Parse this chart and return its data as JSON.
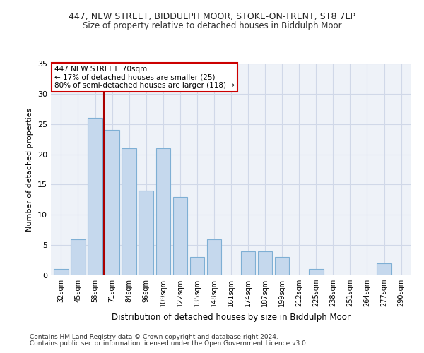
{
  "title1": "447, NEW STREET, BIDDULPH MOOR, STOKE-ON-TRENT, ST8 7LP",
  "title2": "Size of property relative to detached houses in Biddulph Moor",
  "xlabel": "Distribution of detached houses by size in Biddulph Moor",
  "ylabel": "Number of detached properties",
  "categories": [
    "32sqm",
    "45sqm",
    "58sqm",
    "71sqm",
    "84sqm",
    "96sqm",
    "109sqm",
    "122sqm",
    "135sqm",
    "148sqm",
    "161sqm",
    "174sqm",
    "187sqm",
    "199sqm",
    "212sqm",
    "225sqm",
    "238sqm",
    "251sqm",
    "264sqm",
    "277sqm",
    "290sqm"
  ],
  "values": [
    1,
    6,
    26,
    24,
    21,
    14,
    21,
    13,
    3,
    6,
    0,
    4,
    4,
    3,
    0,
    1,
    0,
    0,
    0,
    2,
    0
  ],
  "bar_color": "#c5d8ed",
  "bar_edge_color": "#7eafd4",
  "vline_color": "#aa0000",
  "annotation_text": "447 NEW STREET: 70sqm\n← 17% of detached houses are smaller (25)\n80% of semi-detached houses are larger (118) →",
  "annotation_box_color": "#ffffff",
  "annotation_box_edge": "#cc0000",
  "ylim": [
    0,
    35
  ],
  "yticks": [
    0,
    5,
    10,
    15,
    20,
    25,
    30,
    35
  ],
  "grid_color": "#d0d8e8",
  "bg_color": "#eef2f8",
  "footer1": "Contains HM Land Registry data © Crown copyright and database right 2024.",
  "footer2": "Contains public sector information licensed under the Open Government Licence v3.0.",
  "title_fontsize": 9,
  "subtitle_fontsize": 8.5
}
